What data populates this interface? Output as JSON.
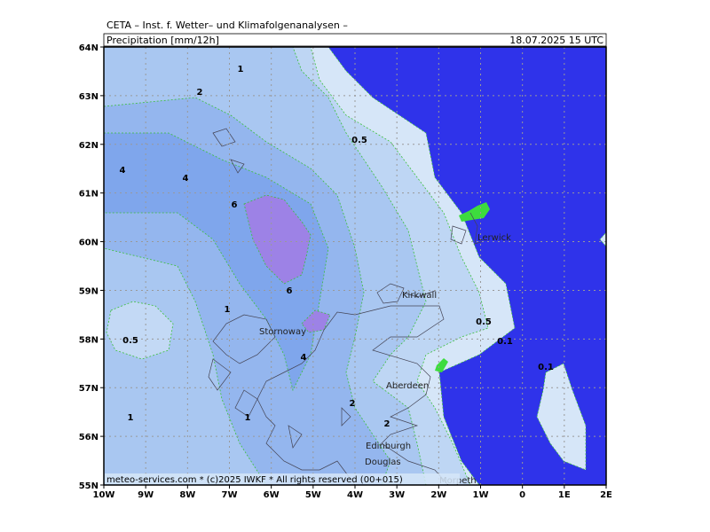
{
  "header": {
    "title": "CETA – Inst. f. Wetter– und Klimafolgenanalysen –",
    "parameter": "Precipitation [mm/12h]",
    "valid_time": "18.07.2025 15 UTC"
  },
  "axes": {
    "latitude": [
      "64N",
      "63N",
      "62N",
      "61N",
      "60N",
      "59N",
      "58N",
      "57N",
      "56N",
      "55N"
    ],
    "longitude": [
      "10W",
      "9W",
      "8W",
      "7W",
      "6W",
      "5W",
      "4W",
      "3W",
      "2W",
      "1W",
      "0",
      "1E",
      "2E"
    ]
  },
  "contour_labels": [
    1,
    2,
    0.5,
    4,
    4,
    6,
    6,
    1,
    0.5,
    4,
    2,
    2,
    1,
    1,
    0.5,
    0.1,
    0.1
  ],
  "places": [
    "Lerwick",
    "Kirkwall",
    "Stornoway",
    "Aberdeen",
    "Edinburgh",
    "Douglas",
    "Morpeth"
  ],
  "footer": "meteo-services.com * (c)2025 IWKF * All rights reserved (00+015)"
}
